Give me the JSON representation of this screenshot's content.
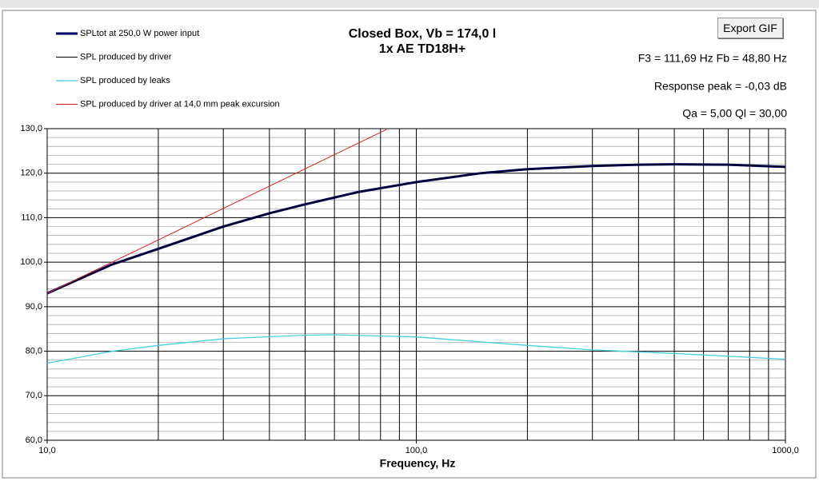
{
  "chart_data": {
    "type": "line",
    "title": "Closed Box, Vb = 174,0 l",
    "subtitle": "1x AE TD18H+",
    "annotations": [
      "F3 = 111,69 Hz  Fb = 48,80 Hz",
      "Response peak = -0,03 dB",
      "Qa = 5,00  Ql = 30,00"
    ],
    "button": "Export GIF",
    "x_label": "Frequency, Hz",
    "xlog": true,
    "xlim": [
      10,
      1000
    ],
    "ylim": [
      60,
      130
    ],
    "xticks": [
      {
        "value": 10,
        "label": "10,0"
      },
      {
        "value": 100,
        "label": "100,0"
      },
      {
        "value": 1000,
        "label": "1000,0"
      }
    ],
    "xminorticks": [
      20,
      30,
      40,
      50,
      60,
      70,
      80,
      90,
      200,
      300,
      400,
      500,
      600,
      700,
      800,
      900
    ],
    "yticks": [
      {
        "value": 60,
        "label": "60,0"
      },
      {
        "value": 70,
        "label": "70,0"
      },
      {
        "value": 80,
        "label": "80,0"
      },
      {
        "value": 90,
        "label": "90,0"
      },
      {
        "value": 100,
        "label": "100,0"
      },
      {
        "value": 110,
        "label": "110,0"
      },
      {
        "value": 120,
        "label": "120,0"
      },
      {
        "value": 130,
        "label": "130,0"
      }
    ],
    "yminorticks": [
      62,
      64,
      66,
      68,
      72,
      74,
      76,
      78,
      82,
      84,
      86,
      88,
      92,
      94,
      96,
      98,
      102,
      104,
      106,
      108,
      112,
      114,
      116,
      118,
      122,
      124,
      126,
      128
    ],
    "grid": true,
    "legend": "top-left",
    "series": [
      {
        "name": "SPLtot at 250,0 W power input",
        "color": "#000066",
        "width": 3,
        "x": [
          10,
          15,
          20,
          30,
          40,
          50,
          70,
          100,
          150,
          200,
          300,
          400,
          500,
          700,
          1000
        ],
        "values": [
          93,
          99.5,
          103,
          108,
          111,
          113,
          115.8,
          118,
          120,
          120.9,
          121.6,
          121.9,
          122,
          121.9,
          121.4
        ]
      },
      {
        "name": "SPL produced by driver",
        "color": "#000000",
        "width": 1,
        "x": [
          10,
          15,
          20,
          30,
          40,
          50,
          70,
          100,
          150,
          200,
          300,
          400,
          500,
          700,
          1000
        ],
        "values": [
          93,
          99.5,
          103,
          108,
          111,
          113,
          115.8,
          118,
          120,
          120.9,
          121.6,
          121.9,
          122,
          121.9,
          121.4
        ]
      },
      {
        "name": "SPL produced by leaks",
        "color": "#40d0e0",
        "width": 1.3,
        "x": [
          10,
          15,
          20,
          30,
          50,
          60,
          100,
          200,
          300,
          500,
          1000
        ],
        "values": [
          77.3,
          80,
          81.3,
          82.8,
          83.6,
          83.7,
          83.2,
          81.3,
          80.3,
          79.5,
          78.2
        ]
      },
      {
        "name": "SPL produced by driver at 14,0 mm peak excursion",
        "color": "#e02020",
        "width": 1,
        "x": [
          10,
          20,
          40,
          83
        ],
        "values": [
          93,
          105,
          117.1,
          129.8
        ]
      }
    ]
  }
}
